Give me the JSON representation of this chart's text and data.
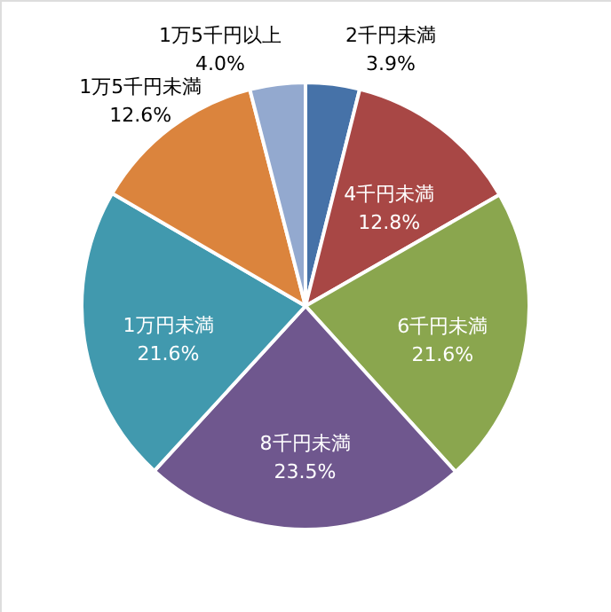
{
  "chart_data": {
    "type": "pie",
    "categories": [
      "2千円未満",
      "4千円未満",
      "6千円未満",
      "8千円未満",
      "1万円未満",
      "1万5千円未満",
      "1万5千円以上"
    ],
    "values": [
      3.9,
      12.8,
      21.6,
      23.5,
      21.6,
      12.6,
      4.0
    ],
    "value_labels": [
      "3.9%",
      "12.8%",
      "21.6%",
      "23.5%",
      "21.6%",
      "12.6%",
      "4.0%"
    ],
    "colors": [
      "#4672a8",
      "#a84745",
      "#8aa64e",
      "#6f578e",
      "#4199ae",
      "#db843d",
      "#93a9cf"
    ]
  }
}
